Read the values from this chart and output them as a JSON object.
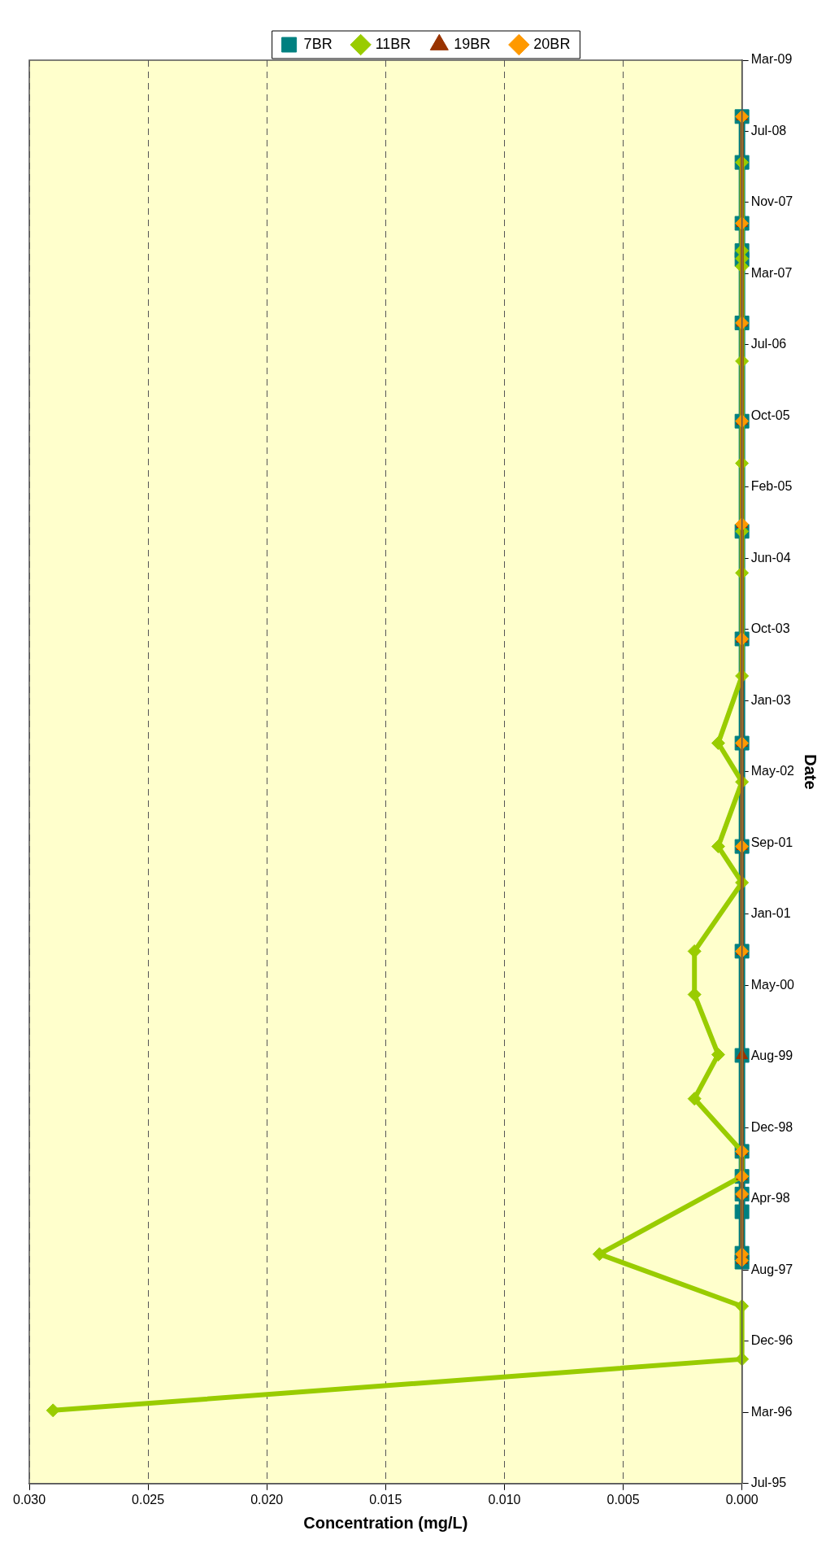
{
  "chart_data": {
    "type": "line",
    "orientation": "horizontal",
    "xlabel": "Concentration (mg/L)",
    "ylabel": "Date",
    "ylim": [
      "1995-07-21",
      "2009-03-29"
    ],
    "yticks": [
      {
        "value": "1995-07-21",
        "label": "Jul-95"
      },
      {
        "value": "1996-03-27",
        "label": "Mar-96"
      },
      {
        "value": "1996-12-02",
        "label": "Dec-96"
      },
      {
        "value": "1997-08-09",
        "label": "Aug-97"
      },
      {
        "value": "1998-04-16",
        "label": "Apr-98"
      },
      {
        "value": "1998-12-22",
        "label": "Dec-98"
      },
      {
        "value": "1999-08-29",
        "label": "Aug-99"
      },
      {
        "value": "2000-05-05",
        "label": "May-00"
      },
      {
        "value": "2001-01-10",
        "label": "Jan-01"
      },
      {
        "value": "2001-09-17",
        "label": "Sep-01"
      },
      {
        "value": "2002-05-25",
        "label": "May-02"
      },
      {
        "value": "2003-01-30",
        "label": "Jan-03"
      },
      {
        "value": "2003-10-07",
        "label": "Oct-03"
      },
      {
        "value": "2004-06-13",
        "label": "Jun-04"
      },
      {
        "value": "2005-02-18",
        "label": "Feb-05"
      },
      {
        "value": "2005-10-26",
        "label": "Oct-05"
      },
      {
        "value": "2006-07-03",
        "label": "Jul-06"
      },
      {
        "value": "2007-03-10",
        "label": "Mar-07"
      },
      {
        "value": "2007-11-15",
        "label": "Nov-07"
      },
      {
        "value": "2008-07-22",
        "label": "Jul-08"
      },
      {
        "value": "2009-03-29",
        "label": "Mar-09"
      }
    ],
    "xlim": [
      0.03,
      0
    ],
    "xticks": [
      {
        "value": 0.03,
        "label": "0.030"
      },
      {
        "value": 0.025,
        "label": "0.025"
      },
      {
        "value": 0.02,
        "label": "0.020"
      },
      {
        "value": 0.015,
        "label": "0.015"
      },
      {
        "value": 0.01,
        "label": "0.010"
      },
      {
        "value": 0.005,
        "label": "0.005"
      },
      {
        "value": 0,
        "label": "0.000"
      }
    ],
    "grid": "x",
    "legend": "top",
    "series": [
      {
        "name": "7BR",
        "color": "#008080",
        "marker": "square",
        "x": [
          "1997-09-06",
          "1997-10-07",
          "1998-03-02",
          "1998-05-03",
          "1998-07-04",
          "1998-09-30",
          "1999-09-02",
          "2000-09-02",
          "2001-09-05",
          "2002-09-03",
          "2003-09-04",
          "2004-09-16",
          "2005-10-08",
          "2006-09-18",
          "2007-04-29",
          "2007-05-30",
          "2007-09-03",
          "2008-04-04",
          "2008-09-12"
        ],
        "values": [
          0,
          0,
          0,
          0,
          0,
          0,
          0,
          0,
          0,
          0,
          0,
          0,
          0,
          0,
          0,
          0,
          0,
          0,
          0
        ]
      },
      {
        "name": "11BR",
        "color": "#99cc00",
        "marker": "diamond",
        "x": [
          "1996-04-03",
          "1996-09-30",
          "1997-04-04",
          "1997-10-04",
          "1998-07-04",
          "1998-09-30",
          "1999-04-03",
          "1999-09-05",
          "2000-04-03",
          "2000-09-02",
          "2001-05-01",
          "2001-09-05",
          "2002-04-20",
          "2002-09-03",
          "2003-04-27",
          "2004-04-23",
          "2004-09-16",
          "2005-05-13",
          "2006-05-07",
          "2007-04-04",
          "2007-05-02",
          "2007-05-30",
          "2008-04-04"
        ],
        "values": [
          0.029,
          0,
          0,
          0.006,
          0,
          0,
          0.002,
          0.001,
          0.002,
          0.002,
          0,
          0.001,
          0,
          0.001,
          0,
          0,
          0,
          0,
          0,
          0,
          0,
          0,
          0
        ]
      },
      {
        "name": "19BR",
        "color": "#993300",
        "marker": "triangle",
        "x": [
          "1997-09-12",
          "1997-10-04",
          "1998-05-03",
          "1998-07-04",
          "1998-09-30",
          "1999-09-02",
          "2000-09-02",
          "2001-09-05",
          "2002-09-03",
          "2003-09-04",
          "2004-10-11",
          "2005-10-08",
          "2006-09-18",
          "2007-09-03",
          "2008-09-12"
        ],
        "values": [
          0,
          0,
          0,
          0,
          0,
          0,
          0,
          0,
          0,
          0,
          0,
          0,
          0,
          0,
          0
        ]
      },
      {
        "name": "20BR",
        "color": "#ff9900",
        "marker": "diamond",
        "x": [
          "1997-09-12",
          "1997-10-04",
          "1998-05-03",
          "1998-07-04",
          "1998-09-30",
          "2000-09-02",
          "2001-09-05",
          "2002-09-03",
          "2003-09-04",
          "2004-10-11",
          "2005-10-08",
          "2006-09-18",
          "2007-09-03",
          "2008-09-12"
        ],
        "values": [
          0,
          0,
          0,
          0,
          0,
          0,
          0,
          0,
          0,
          0,
          0,
          0,
          0,
          0
        ]
      }
    ]
  }
}
